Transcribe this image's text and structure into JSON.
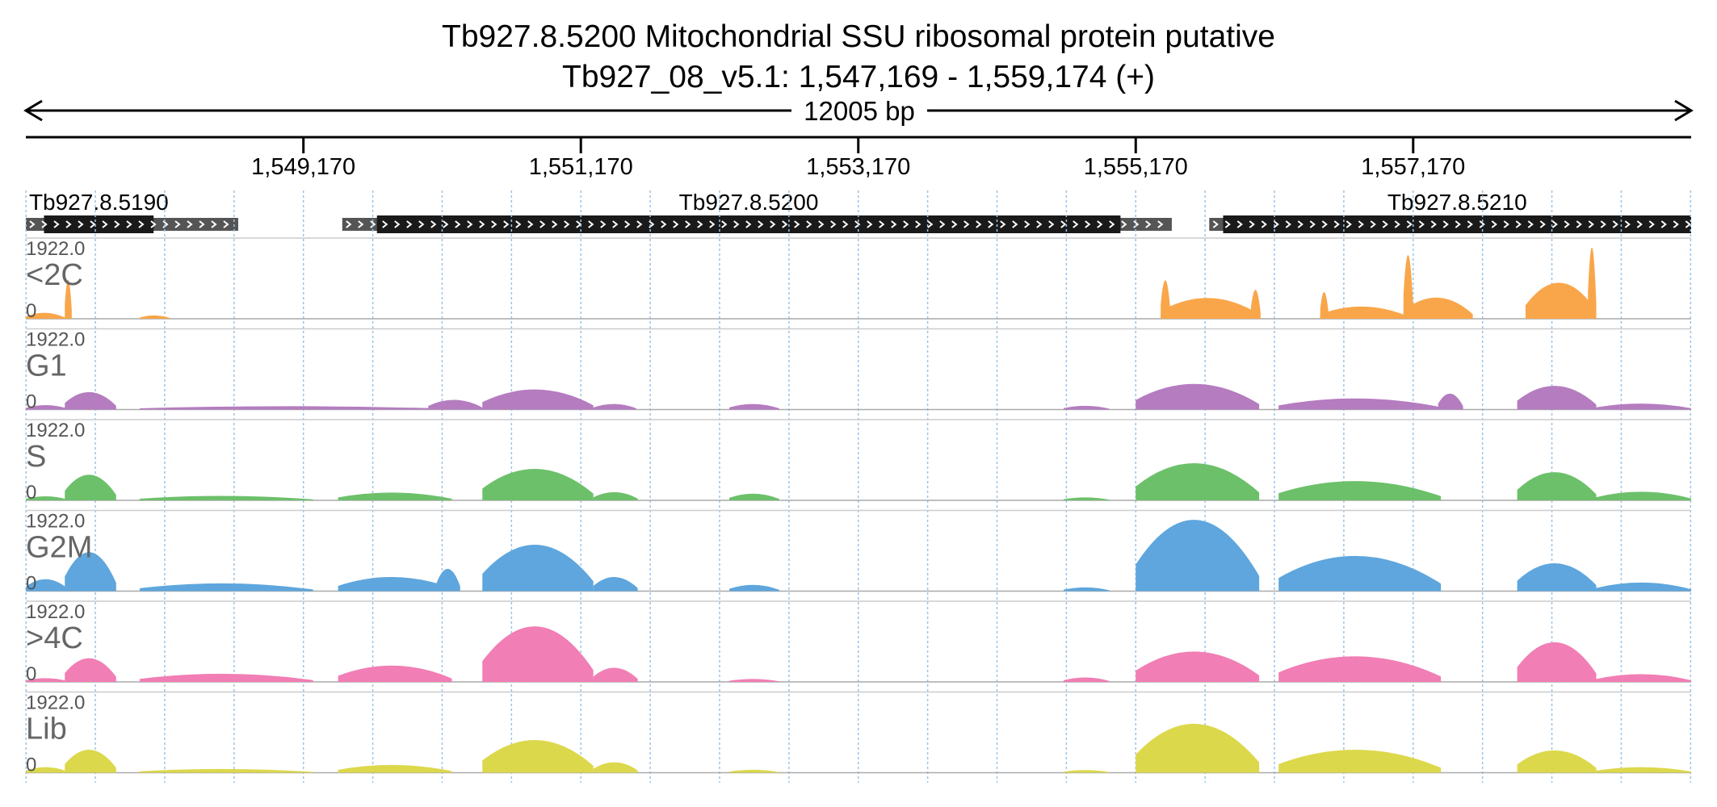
{
  "title": {
    "line1": "Tb927.8.5200  Mitochondrial SSU ribosomal protein  putative",
    "line2": "Tb927_08_v5.1: 1,547,169 - 1,559,174 (+)"
  },
  "span_label": "12005 bp",
  "region": {
    "start": 1547169,
    "end": 1559174
  },
  "ticks": [
    {
      "pos": 1549170,
      "label": "1,549,170"
    },
    {
      "pos": 1551170,
      "label": "1,551,170"
    },
    {
      "pos": 1553170,
      "label": "1,553,170"
    },
    {
      "pos": 1555170,
      "label": "1,555,170"
    },
    {
      "pos": 1557170,
      "label": "1,557,170"
    }
  ],
  "genes": [
    {
      "name": "Tb927.8.5190",
      "utr": [
        1547169,
        1548700
      ],
      "cds": [
        1547300,
        1548090
      ]
    },
    {
      "name": "Tb927.8.5200",
      "utr": [
        1549450,
        1555430
      ],
      "cds": [
        1549700,
        1555060
      ]
    },
    {
      "name": "Tb927.8.5210",
      "utr": [
        1555700,
        1559174
      ],
      "cds": [
        1555800,
        1559174
      ]
    }
  ],
  "colors": {
    "<2C": "#f9a64a",
    "G1": "#b57cc0",
    "S": "#6cc06a",
    "G2M": "#5ea6dd",
    ">4C": "#f17eb4",
    "Lib": "#dcd84c",
    "gene_cds": "#1a1a1a",
    "gene_utr": "#555555",
    "grid": "#9bc4e6"
  },
  "chart_data": {
    "type": "area",
    "x_unit": "bp",
    "xlim": [
      1547169,
      1559174
    ],
    "ylim": [
      0,
      1922.0
    ],
    "y_max_label": "1922.0",
    "y_min_label": "0",
    "tracks": [
      {
        "name": "<2C",
        "segments": [
          {
            "start": 1547169,
            "end": 1547450,
            "peak": 160
          },
          {
            "start": 1547450,
            "end": 1547500,
            "peak": 1050
          },
          {
            "start": 1547990,
            "end": 1548210,
            "peak": 90
          },
          {
            "start": 1555350,
            "end": 1556060,
            "peak": 560
          },
          {
            "start": 1555350,
            "end": 1555420,
            "peak": 1040
          },
          {
            "start": 1556000,
            "end": 1556070,
            "peak": 780
          },
          {
            "start": 1556500,
            "end": 1557130,
            "peak": 330
          },
          {
            "start": 1556500,
            "end": 1556560,
            "peak": 720
          },
          {
            "start": 1557100,
            "end": 1557170,
            "peak": 1720
          },
          {
            "start": 1557100,
            "end": 1557600,
            "peak": 570
          },
          {
            "start": 1557980,
            "end": 1558490,
            "peak": 970
          },
          {
            "start": 1558430,
            "end": 1558490,
            "peak": 1922
          }
        ]
      },
      {
        "name": "G1",
        "segments": [
          {
            "start": 1547169,
            "end": 1547470,
            "peak": 120
          },
          {
            "start": 1547450,
            "end": 1547820,
            "peak": 470
          },
          {
            "start": 1547990,
            "end": 1550240,
            "peak": 90
          },
          {
            "start": 1550070,
            "end": 1550460,
            "peak": 260
          },
          {
            "start": 1550460,
            "end": 1551260,
            "peak": 540
          },
          {
            "start": 1551260,
            "end": 1551570,
            "peak": 150
          },
          {
            "start": 1552240,
            "end": 1552600,
            "peak": 150
          },
          {
            "start": 1554650,
            "end": 1554980,
            "peak": 100
          },
          {
            "start": 1555170,
            "end": 1556060,
            "peak": 690
          },
          {
            "start": 1556200,
            "end": 1557370,
            "peak": 300
          },
          {
            "start": 1557350,
            "end": 1557530,
            "peak": 430
          },
          {
            "start": 1557920,
            "end": 1558490,
            "peak": 640
          },
          {
            "start": 1558490,
            "end": 1559174,
            "peak": 160
          }
        ]
      },
      {
        "name": "S",
        "segments": [
          {
            "start": 1547169,
            "end": 1547470,
            "peak": 110
          },
          {
            "start": 1547450,
            "end": 1547820,
            "peak": 690
          },
          {
            "start": 1547990,
            "end": 1549240,
            "peak": 120
          },
          {
            "start": 1549420,
            "end": 1550240,
            "peak": 210
          },
          {
            "start": 1550460,
            "end": 1551260,
            "peak": 850
          },
          {
            "start": 1551260,
            "end": 1551580,
            "peak": 220
          },
          {
            "start": 1552240,
            "end": 1552600,
            "peak": 180
          },
          {
            "start": 1554650,
            "end": 1554980,
            "peak": 80
          },
          {
            "start": 1555170,
            "end": 1556060,
            "peak": 1000
          },
          {
            "start": 1556200,
            "end": 1557370,
            "peak": 520
          },
          {
            "start": 1557920,
            "end": 1558490,
            "peak": 760
          },
          {
            "start": 1558490,
            "end": 1559174,
            "peak": 230
          }
        ]
      },
      {
        "name": "G2M",
        "segments": [
          {
            "start": 1547169,
            "end": 1547470,
            "peak": 320
          },
          {
            "start": 1547450,
            "end": 1547820,
            "peak": 1050
          },
          {
            "start": 1547990,
            "end": 1549240,
            "peak": 210
          },
          {
            "start": 1549420,
            "end": 1550240,
            "peak": 380
          },
          {
            "start": 1550130,
            "end": 1550300,
            "peak": 600
          },
          {
            "start": 1550460,
            "end": 1551260,
            "peak": 1250
          },
          {
            "start": 1551260,
            "end": 1551580,
            "peak": 380
          },
          {
            "start": 1552240,
            "end": 1552600,
            "peak": 170
          },
          {
            "start": 1554650,
            "end": 1554980,
            "peak": 100
          },
          {
            "start": 1555170,
            "end": 1556060,
            "peak": 1922
          },
          {
            "start": 1556200,
            "end": 1557370,
            "peak": 950
          },
          {
            "start": 1557920,
            "end": 1558490,
            "peak": 750
          },
          {
            "start": 1558490,
            "end": 1559174,
            "peak": 230
          }
        ]
      },
      {
        "name": ">4C",
        "segments": [
          {
            "start": 1547169,
            "end": 1547470,
            "peak": 100
          },
          {
            "start": 1547450,
            "end": 1547820,
            "peak": 640
          },
          {
            "start": 1547990,
            "end": 1549240,
            "peak": 220
          },
          {
            "start": 1549420,
            "end": 1550240,
            "peak": 440
          },
          {
            "start": 1550460,
            "end": 1551260,
            "peak": 1500
          },
          {
            "start": 1551260,
            "end": 1551580,
            "peak": 380
          },
          {
            "start": 1552240,
            "end": 1552600,
            "peak": 80
          },
          {
            "start": 1554650,
            "end": 1554980,
            "peak": 120
          },
          {
            "start": 1555170,
            "end": 1556060,
            "peak": 820
          },
          {
            "start": 1556200,
            "end": 1557370,
            "peak": 690
          },
          {
            "start": 1557920,
            "end": 1558490,
            "peak": 1070
          },
          {
            "start": 1558490,
            "end": 1559174,
            "peak": 210
          }
        ]
      },
      {
        "name": "Lib",
        "segments": [
          {
            "start": 1547169,
            "end": 1547470,
            "peak": 150
          },
          {
            "start": 1547450,
            "end": 1547820,
            "peak": 620
          },
          {
            "start": 1547990,
            "end": 1549240,
            "peak": 100
          },
          {
            "start": 1549420,
            "end": 1550240,
            "peak": 210
          },
          {
            "start": 1550460,
            "end": 1551260,
            "peak": 880
          },
          {
            "start": 1551260,
            "end": 1551580,
            "peak": 280
          },
          {
            "start": 1552240,
            "end": 1552600,
            "peak": 80
          },
          {
            "start": 1554650,
            "end": 1554980,
            "peak": 70
          },
          {
            "start": 1555170,
            "end": 1556060,
            "peak": 1320
          },
          {
            "start": 1556200,
            "end": 1557370,
            "peak": 620
          },
          {
            "start": 1557920,
            "end": 1558490,
            "peak": 600
          },
          {
            "start": 1558490,
            "end": 1559174,
            "peak": 150
          }
        ]
      }
    ]
  }
}
